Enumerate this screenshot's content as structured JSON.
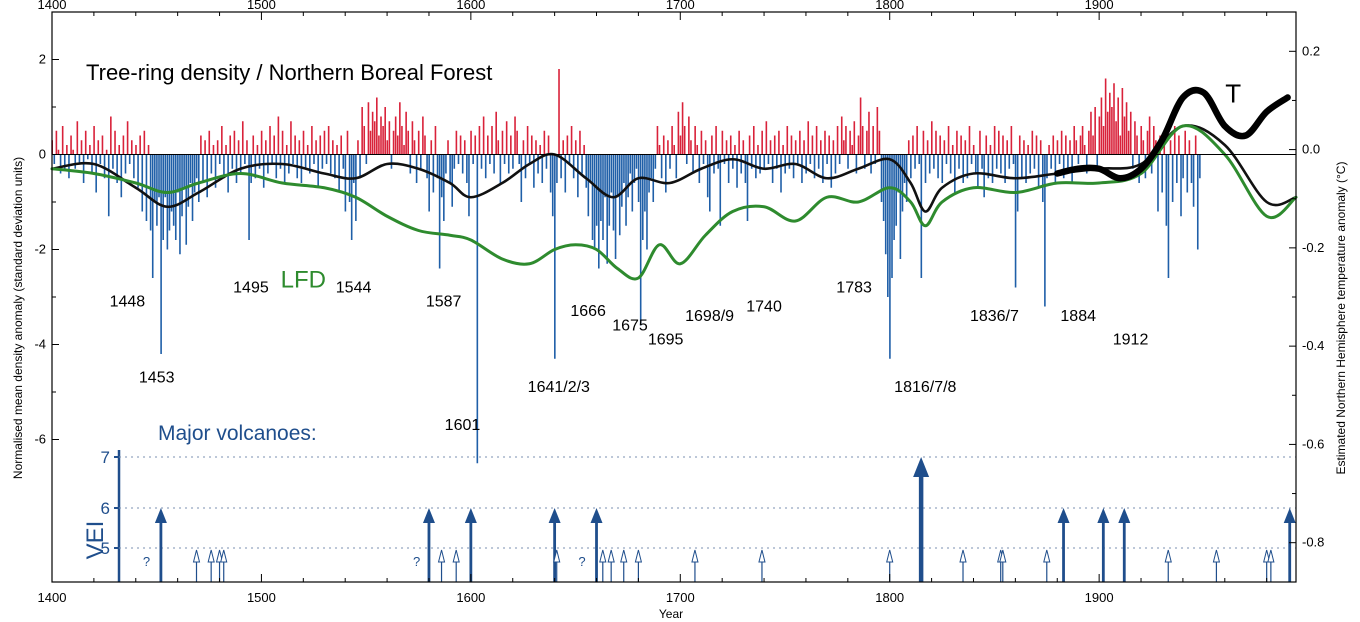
{
  "chart_data": {
    "type": "bar",
    "title": "Tree-ring density / Northern Boreal Forest",
    "xlabel": "Year",
    "ylabel": "Normalised mean density anomaly  (standard deviation units)",
    "y2label": "Estimated Northern Hemisphere temperature anomaly (°C)",
    "xlim": [
      1400,
      1994
    ],
    "ylim": [
      -9,
      3
    ],
    "y2lim": [
      -0.88,
      0.28
    ],
    "x_ticks": [
      "1400",
      "1500",
      "1600",
      "1700",
      "1800",
      "1900"
    ],
    "y_ticks": [
      "2",
      "0",
      "-2",
      "-4",
      "-6"
    ],
    "y2_ticks": [
      "0.2",
      "0.0",
      "-0.2",
      "-0.4",
      "-0.6",
      "-0.8"
    ],
    "bar_colors": {
      "positive": "#d9223a",
      "negative": "#1f5fa8"
    },
    "density_bars": {
      "start_year": 1400,
      "values": [
        0.3,
        -0.2,
        0.5,
        0.1,
        -0.4,
        0.6,
        -0.3,
        0.2,
        -0.5,
        0.4,
        0.1,
        -0.3,
        0.7,
        -0.2,
        0.3,
        -0.6,
        0.5,
        -0.1,
        0.2,
        -0.4,
        0.6,
        -0.8,
        0.3,
        -0.2,
        0.4,
        -0.5,
        0.1,
        -1.3,
        0.8,
        -0.3,
        0.5,
        -0.6,
        0.2,
        -0.9,
        0.4,
        -0.4,
        0.7,
        -0.2,
        0.3,
        -0.5,
        0.2,
        -0.7,
        0.4,
        -1.2,
        0.5,
        -1.4,
        0.2,
        -1.6,
        -2.6,
        -1.0,
        -1.5,
        -0.9,
        -4.2,
        -1.8,
        -0.9,
        -2.0,
        -1.6,
        -1.2,
        -1.5,
        -1.8,
        -0.8,
        -2.1,
        -1.3,
        -0.7,
        -1.9,
        -1.1,
        -0.6,
        -1.4,
        -0.8,
        -0.5,
        -1.0,
        0.4,
        -0.6,
        0.3,
        -0.9,
        0.5,
        -0.4,
        0.2,
        -0.7,
        0.3,
        -0.2,
        0.6,
        -0.5,
        0.2,
        -0.8,
        0.4,
        -0.3,
        0.5,
        -0.6,
        0.3,
        -0.4,
        0.7,
        -0.2,
        0.3,
        -1.8,
        -0.6,
        0.4,
        -0.5,
        0.2,
        -0.3,
        0.5,
        -0.7,
        0.3,
        -0.4,
        0.6,
        -0.2,
        0.4,
        -0.5,
        0.8,
        -0.3,
        0.5,
        -0.6,
        0.2,
        -0.4,
        0.7,
        -0.2,
        0.4,
        -0.5,
        0.3,
        -0.6,
        0.5,
        -0.3,
        0.2,
        -0.4,
        0.6,
        -0.2,
        0.3,
        -0.7,
        0.4,
        -0.3,
        0.5,
        -0.2,
        0.6,
        -0.4,
        0.3,
        -0.5,
        0.2,
        -0.8,
        0.4,
        -0.3,
        -1.2,
        0.5,
        -1.0,
        -1.8,
        -0.6,
        -1.4,
        0.3,
        -0.5,
        1.0,
        0.6,
        -0.2,
        1.1,
        0.5,
        0.9,
        0.7,
        1.2,
        0.4,
        0.8,
        0.6,
        1.0,
        0.3,
        0.7,
        -0.3,
        0.5,
        0.8,
        0.4,
        1.1,
        0.6,
        0.2,
        0.9,
        0.5,
        -0.4,
        0.7,
        0.3,
        -0.6,
        0.5,
        -0.3,
        0.8,
        0.4,
        -0.5,
        -1.2,
        0.3,
        -0.8,
        0.6,
        -0.5,
        -2.4,
        -0.9,
        -1.4,
        -0.4,
        0.3,
        -0.6,
        -1.1,
        -0.3,
        0.5,
        -0.2,
        0.4,
        -0.4,
        0.3,
        -0.6,
        -1.3,
        0.5,
        -0.2,
        0.4,
        -6.5,
        0.6,
        -0.3,
        0.8,
        -0.5,
        0.4,
        -0.2,
        0.6,
        -0.4,
        0.9,
        0.3,
        -0.6,
        0.5,
        -0.2,
        0.7,
        -0.4,
        0.4,
        -0.3,
        0.8,
        0.5,
        -0.2,
        -1.0,
        0.3,
        -0.5,
        0.6,
        -0.2,
        0.4,
        -0.7,
        0.3,
        -0.4,
        0.2,
        -0.6,
        0.5,
        -0.3,
        0.4,
        -0.8,
        -1.3,
        -4.3,
        -0.6,
        1.8,
        -0.5,
        0.3,
        -0.8,
        0.4,
        -0.2,
        0.6,
        -0.5,
        0.3,
        -0.9,
        0.5,
        -0.4,
        0.2,
        -0.7,
        -1.3,
        -0.6,
        -1.8,
        -2.0,
        -1.5,
        -2.4,
        -1.4,
        -1.8,
        -0.9,
        -2.3,
        -1.5,
        -0.8,
        -1.6,
        -2.2,
        -0.9,
        -1.7,
        -1.1,
        -0.6,
        -1.5,
        -0.9,
        -0.4,
        -1.2,
        -0.6,
        -0.3,
        -1.0,
        -3.6,
        -1.8,
        -1.2,
        -2.0,
        -0.8,
        -0.5,
        -1.0,
        -0.3,
        0.6,
        0.2,
        -0.5,
        0.4,
        -0.8,
        0.3,
        -0.3,
        0.6,
        0.2,
        -0.5,
        0.9,
        0.4,
        1.1,
        0.6,
        -0.2,
        0.8,
        0.3,
        -0.4,
        0.6,
        0.2,
        -0.6,
        0.5,
        -0.2,
        0.3,
        -0.9,
        -1.2,
        0.4,
        -0.4,
        0.6,
        -0.3,
        -1.5,
        0.5,
        -0.2,
        0.3,
        -0.6,
        0.4,
        -0.3,
        0.2,
        -0.7,
        0.5,
        -0.4,
        0.3,
        -0.6,
        -1.4,
        0.4,
        -0.3,
        0.6,
        -0.5,
        0.2,
        -0.4,
        0.5,
        -0.3,
        0.7,
        -0.2,
        0.3,
        -0.6,
        0.4,
        -0.3,
        0.5,
        -0.8,
        0.2,
        -0.4,
        0.6,
        -0.3,
        0.4,
        -0.5,
        0.3,
        -0.2,
        0.5,
        -0.6,
        0.3,
        -0.4,
        0.7,
        -0.2,
        0.4,
        -0.5,
        0.6,
        -0.3,
        0.3,
        -0.6,
        0.5,
        -0.2,
        0.4,
        -0.7,
        0.3,
        -0.4,
        0.6,
        -0.2,
        0.8,
        0.3,
        0.6,
        -0.3,
        0.5,
        0.2,
        0.7,
        -0.4,
        0.4,
        1.2,
        0.6,
        -0.3,
        0.5,
        0.9,
        -0.4,
        0.6,
        -0.2,
        1.0,
        0.5,
        -1.0,
        -1.4,
        -2.1,
        -3.0,
        -4.3,
        -2.6,
        -1.8,
        -1.5,
        -0.8,
        -2.2,
        -1.2,
        -0.6,
        -1.0,
        0.3,
        -0.5,
        0.4,
        -0.3,
        0.6,
        -0.2,
        -2.6,
        0.5,
        -0.6,
        0.3,
        -0.4,
        0.7,
        -0.3,
        0.5,
        -0.5,
        0.4,
        -0.6,
        0.3,
        -0.2,
        0.6,
        -0.4,
        0.2,
        -0.8,
        0.5,
        -0.3,
        0.4,
        -0.6,
        0.3,
        -0.5,
        0.6,
        -0.2,
        0.2,
        -0.4,
        -0.7,
        0.5,
        -0.3,
        -0.9,
        0.4,
        -0.5,
        0.2,
        -0.6,
        0.6,
        -0.3,
        0.5,
        -0.4,
        0.4,
        -0.6,
        0.3,
        -0.3,
        0.6,
        -0.2,
        -2.8,
        -1.2,
        0.4,
        -0.5,
        0.3,
        -0.6,
        0.2,
        -0.4,
        0.5,
        -0.3,
        0.4,
        -0.7,
        0.3,
        -1.0,
        -3.2,
        -0.5,
        0.2,
        -0.3,
        0.4,
        -0.6,
        0.3,
        -0.2,
        0.5,
        -0.5,
        0.4,
        -0.3,
        0.3,
        -0.6,
        0.6,
        0.3,
        -0.2,
        0.4,
        0.6,
        0.2,
        -0.4,
        0.5,
        0.9,
        0.4,
        1.0,
        -0.3,
        0.8,
        1.2,
        0.6,
        1.6,
        0.9,
        1.3,
        1.0,
        1.5,
        0.7,
        1.2,
        0.4,
        1.4,
        0.8,
        1.1,
        0.5,
        0.9,
        -0.3,
        0.7,
        0.4,
        -0.6,
        0.6,
        0.3,
        -0.5,
        0.5,
        0.8,
        -0.4,
        0.6,
        0.3,
        -1.2,
        0.4,
        -0.8,
        0.5,
        -1.5,
        -2.6,
        0.3,
        -1.0,
        0.6,
        -0.6,
        0.4,
        -1.3,
        -0.5,
        0.5,
        -0.8,
        0.3,
        -0.6,
        -1.1,
        0.4,
        -2.0,
        -0.5
      ]
    },
    "smoothed_series": [
      {
        "name": "",
        "color": "#111111",
        "x": [
          1400,
          1420,
          1440,
          1455,
          1470,
          1490,
          1510,
          1530,
          1545,
          1560,
          1575,
          1590,
          1600,
          1615,
          1628,
          1640,
          1655,
          1668,
          1680,
          1695,
          1710,
          1725,
          1740,
          1755,
          1770,
          1785,
          1800,
          1810,
          1817,
          1825,
          1840,
          1860,
          1880,
          1900,
          1920,
          1940,
          1960,
          1980,
          1994
        ],
        "y": [
          -0.3,
          -0.2,
          -0.7,
          -1.1,
          -0.8,
          -0.3,
          -0.2,
          -0.4,
          -0.5,
          -0.2,
          -0.3,
          -0.6,
          -0.9,
          -0.6,
          -0.2,
          0.0,
          -0.5,
          -0.9,
          -0.5,
          -0.6,
          -0.3,
          -0.1,
          -0.3,
          -0.2,
          -0.5,
          -0.3,
          -0.1,
          -0.6,
          -1.2,
          -0.7,
          -0.4,
          -0.5,
          -0.4,
          -0.3,
          -0.2,
          0.6,
          0.2,
          -1.0,
          -0.9
        ]
      },
      {
        "name": "LFD",
        "color": "#2e8b2e",
        "x": [
          1400,
          1420,
          1440,
          1455,
          1470,
          1490,
          1510,
          1530,
          1545,
          1560,
          1575,
          1590,
          1600,
          1615,
          1628,
          1640,
          1650,
          1660,
          1670,
          1680,
          1690,
          1700,
          1712,
          1725,
          1740,
          1755,
          1770,
          1785,
          1800,
          1810,
          1817,
          1825,
          1840,
          1860,
          1880,
          1900,
          1920,
          1940,
          1960,
          1980,
          1994
        ],
        "y": [
          -0.3,
          -0.4,
          -0.6,
          -0.8,
          -0.6,
          -0.4,
          -0.6,
          -0.7,
          -0.9,
          -1.3,
          -1.6,
          -1.7,
          -1.8,
          -2.2,
          -2.3,
          -2.0,
          -1.9,
          -2.0,
          -2.4,
          -2.6,
          -1.9,
          -2.3,
          -1.7,
          -1.2,
          -1.1,
          -1.4,
          -0.9,
          -1.0,
          -0.7,
          -1.0,
          -1.5,
          -1.0,
          -0.7,
          -0.8,
          -0.6,
          -0.6,
          -0.4,
          0.6,
          0.0,
          -1.3,
          -0.9
        ]
      },
      {
        "name": "T",
        "color": "#000000",
        "x": [
          1880,
          1890,
          1900,
          1910,
          1920,
          1930,
          1940,
          1950,
          1960,
          1970,
          1980,
          1990
        ],
        "y": [
          -0.4,
          -0.3,
          -0.3,
          -0.5,
          -0.3,
          0.3,
          1.2,
          1.3,
          0.6,
          0.4,
          0.9,
          1.2
        ]
      }
    ],
    "year_annotations": [
      {
        "label": "1448",
        "year": 1436,
        "y": -3.2
      },
      {
        "label": "1453",
        "year": 1450,
        "y": -4.8
      },
      {
        "label": "1495",
        "year": 1495,
        "y": -2.9
      },
      {
        "label": "1544",
        "year": 1544,
        "y": -2.9
      },
      {
        "label": "1587",
        "year": 1587,
        "y": -3.2
      },
      {
        "label": "1601",
        "year": 1596,
        "y": -5.8
      },
      {
        "label": "1641/2/3",
        "year": 1642,
        "y": -5.0
      },
      {
        "label": "1666",
        "year": 1656,
        "y": -3.4
      },
      {
        "label": "1675",
        "year": 1676,
        "y": -3.7
      },
      {
        "label": "1695",
        "year": 1693,
        "y": -4.0
      },
      {
        "label": "1698/9",
        "year": 1714,
        "y": -3.5
      },
      {
        "label": "1740",
        "year": 1740,
        "y": -3.3
      },
      {
        "label": "1783",
        "year": 1783,
        "y": -2.9
      },
      {
        "label": "1816/7/8",
        "year": 1817,
        "y": -5.0
      },
      {
        "label": "1836/7",
        "year": 1850,
        "y": -3.5
      },
      {
        "label": "1884",
        "year": 1890,
        "y": -3.5
      },
      {
        "label": "1912",
        "year": 1915,
        "y": -4.0
      }
    ],
    "series_labels": [
      {
        "label": "LFD",
        "year": 1520,
        "y": -2.8
      },
      {
        "label": "T",
        "year": 1964,
        "y": 1.1
      }
    ],
    "volcanoes": {
      "title": "Major volcanoes:",
      "axis_label": "VEI",
      "vei_ticks": [
        "7",
        "6",
        "5"
      ],
      "question_label": "?",
      "major": [
        {
          "year": 1452,
          "vei": 6
        },
        {
          "year": 1580,
          "vei": 6
        },
        {
          "year": 1600,
          "vei": 6
        },
        {
          "year": 1640,
          "vei": 6
        },
        {
          "year": 1660,
          "vei": 6
        },
        {
          "year": 1815,
          "vei": 7
        },
        {
          "year": 1883,
          "vei": 6
        },
        {
          "year": 1902,
          "vei": 6
        },
        {
          "year": 1912,
          "vei": 6
        },
        {
          "year": 1991,
          "vei": 6
        }
      ],
      "vei5": [
        1469,
        1476,
        1480,
        1482,
        1586,
        1593,
        1641,
        1663,
        1667,
        1673,
        1680,
        1707,
        1739,
        1800,
        1835,
        1853,
        1854,
        1875,
        1933,
        1956,
        1980,
        1982
      ],
      "uncertain": [
        1447,
        1576,
        1655
      ]
    }
  }
}
